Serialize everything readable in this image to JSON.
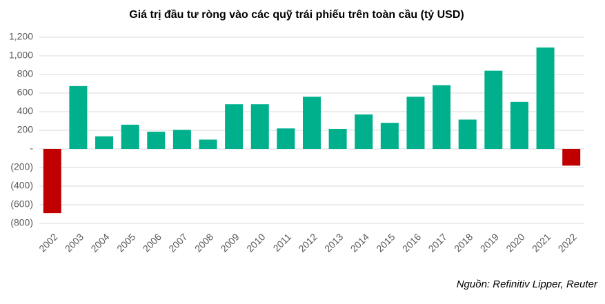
{
  "chart_data": {
    "type": "bar",
    "title": "Giá trị đầu tư ròng vào các quỹ trái phiếu trên toàn cầu (tỷ USD)",
    "source": "Nguồn: Refinitiv Lipper, Reuter",
    "categories": [
      "2002",
      "2003",
      "2004",
      "2005",
      "2006",
      "2007",
      "2008",
      "2009",
      "2010",
      "2011",
      "2012",
      "2013",
      "2014",
      "2015",
      "2016",
      "2017",
      "2018",
      "2019",
      "2020",
      "2021",
      "2022"
    ],
    "values": [
      -690,
      675,
      135,
      260,
      185,
      205,
      100,
      480,
      480,
      220,
      560,
      215,
      370,
      280,
      560,
      685,
      315,
      840,
      505,
      1090,
      -180
    ],
    "colors": [
      "#c00000",
      "#00b08c",
      "#00b08c",
      "#00b08c",
      "#00b08c",
      "#00b08c",
      "#00b08c",
      "#00b08c",
      "#00b08c",
      "#00b08c",
      "#00b08c",
      "#00b08c",
      "#00b08c",
      "#00b08c",
      "#00b08c",
      "#00b08c",
      "#00b08c",
      "#00b08c",
      "#00b08c",
      "#00b08c",
      "#c00000"
    ],
    "ylim": [
      -800,
      1200
    ],
    "yticks": [
      {
        "value": -800,
        "label": "(800)"
      },
      {
        "value": -600,
        "label": "(600)"
      },
      {
        "value": -400,
        "label": "(400)"
      },
      {
        "value": -200,
        "label": "(200)"
      },
      {
        "value": 0,
        "label": "-"
      },
      200,
      400,
      600,
      800,
      {
        "value": 1000,
        "label": "1,000"
      },
      {
        "value": 1200,
        "label": "1,200"
      }
    ],
    "grid": true
  }
}
